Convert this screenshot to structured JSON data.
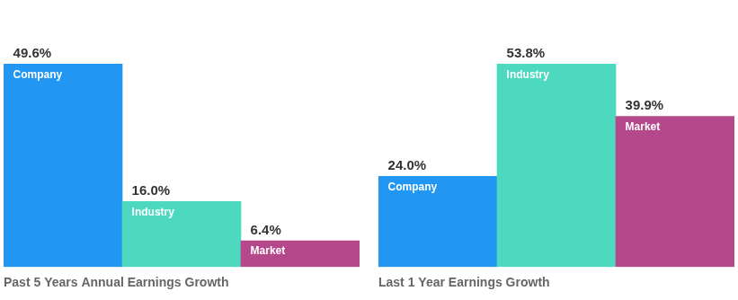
{
  "chart_data": [
    {
      "type": "bar",
      "title": "Past 5 Years Annual Earnings Growth",
      "categories": [
        "Company",
        "Industry",
        "Market"
      ],
      "values": [
        49.6,
        16.0,
        6.4
      ],
      "value_labels": [
        "49.6%",
        "16.0%",
        "6.4%"
      ],
      "colors": [
        "#2196f3",
        "#4dd9c0",
        "#b5488a"
      ],
      "ylim": [
        0,
        63.488
      ],
      "grid": false,
      "legend": false,
      "tick_labels": false,
      "data_labels": true
    },
    {
      "type": "bar",
      "title": "Last 1 Year Earnings Growth",
      "categories": [
        "Company",
        "Industry",
        "Market"
      ],
      "values": [
        24.0,
        53.8,
        39.9
      ],
      "value_labels": [
        "24.0%",
        "53.8%",
        "39.9%"
      ],
      "colors": [
        "#2196f3",
        "#4dd9c0",
        "#b5488a"
      ],
      "ylim": [
        0,
        68.864
      ],
      "grid": false,
      "legend": false,
      "tick_labels": false,
      "data_labels": true
    }
  ]
}
